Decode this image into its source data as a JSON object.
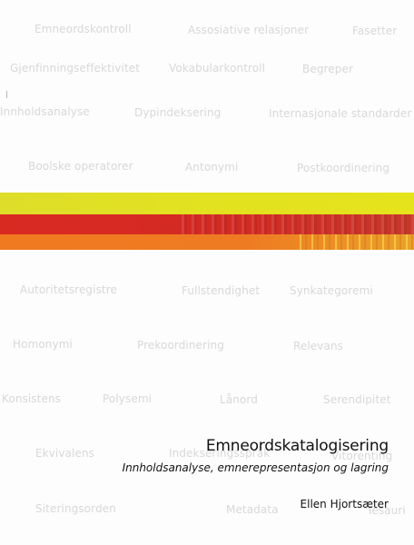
{
  "cover": {
    "title": "Emneordskatalogisering",
    "subtitle": "Innholdsanalyse, emnerepresentasjon og lagring",
    "author": "Ellen Hjortsæter"
  },
  "background_terms": [
    "Emneordskontroll",
    "Assosiative relasjoner",
    "Fasetter",
    "Gjenfinningseffektivitet",
    "Vokabularkontroll",
    "Begreper",
    "Innholdsanalyse",
    "Dypindeksering",
    "Internasjonale standarder",
    "Boolske operatorer",
    "Antonymi",
    "Postkoordinering",
    "Autoritetsregistre",
    "Fullstendighet",
    "Synkategoremi",
    "Homonymi",
    "Prekoordinering",
    "Relevans",
    "Konsistens",
    "Polysemi",
    "Lånord",
    "Serendipitet",
    "Ekvivalens",
    "Indekseringsspråk",
    "Vitorenting",
    "Siteringsorden",
    "Metadata",
    "Tesauri"
  ],
  "colors": {
    "yellow_band": "#e3e21f",
    "red_band": "#d32a24",
    "orange_band": "#ee7b22",
    "term_text": "#d8d8d8",
    "title_text": "#111111"
  }
}
